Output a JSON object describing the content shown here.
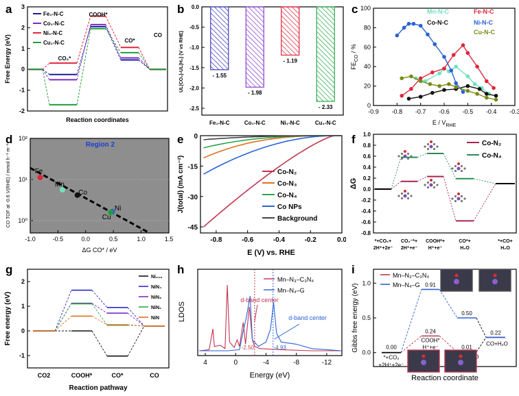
{
  "panel_labels": {
    "a": "a",
    "b": "b",
    "c": "c",
    "d": "d",
    "e": "e",
    "f": "f",
    "g": "g",
    "h": "h",
    "i": "i"
  },
  "chart_data": [
    {
      "id": "a",
      "type": "line",
      "title": "",
      "xlabel": "Reaction coordinates",
      "ylabel": "Free Energy (eV)",
      "ylim": [
        -2,
        3
      ],
      "yticks": [
        "-2",
        "-1",
        "0",
        "1",
        "2",
        "3"
      ],
      "steps": [
        "",
        "CO2*",
        "COOH*",
        "CO*",
        "CO"
      ],
      "step_labels": {
        "co2": "CO₂*",
        "cooh": "COOH*",
        "co": "CO*",
        "co_final": "CO"
      },
      "series": [
        {
          "name": "Fe₁-N-C",
          "color": "#1c1c9a",
          "values": [
            0,
            -0.25,
            2.05,
            0.45,
            0.0
          ]
        },
        {
          "name": "Co₁-N-C",
          "color": "#7a2bc4",
          "values": [
            0,
            -0.5,
            2.15,
            0.55,
            0.0
          ]
        },
        {
          "name": "Ni₁-N-C",
          "color": "#e0263a",
          "values": [
            0,
            0.3,
            2.55,
            1.05,
            0.0
          ]
        },
        {
          "name": "Cu₁-N-C",
          "color": "#1f9e3a",
          "values": [
            0,
            -1.7,
            1.95,
            0.8,
            0.0
          ]
        }
      ]
    },
    {
      "id": "b",
      "type": "bar",
      "title": "",
      "ylabel": "UL(CO₂)-UL(H₂) (V vs RHE)",
      "ylim": [
        -2.5,
        0
      ],
      "yticks": [
        "0.0",
        "-0.5",
        "-1.0",
        "-1.5",
        "-2.0",
        "-2.5"
      ],
      "categories": [
        "Fe₁-N-C",
        "Co₁-N-C",
        "Ni₁-N-C",
        "Cu₁-N-C"
      ],
      "values": [
        -1.55,
        -1.98,
        -1.19,
        -2.33
      ],
      "value_labels": [
        "- 1.55",
        "- 1.98",
        "- 1.19",
        "- 2.33"
      ],
      "colors": [
        "#3d3dbd",
        "#8a3fd1",
        "#e0263a",
        "#2aa84a"
      ]
    },
    {
      "id": "c",
      "type": "scatter",
      "title": "",
      "xlabel": "E / V",
      "xlabel_sub": "RHE",
      "ylabel": "FE",
      "ylabel_sub": "CO",
      "ylabel_unit": " / %",
      "xlim": [
        -0.9,
        -0.3
      ],
      "ylim": [
        0,
        100
      ],
      "xticks": [
        "-0.9",
        "-0.8",
        "-0.7",
        "-0.6",
        "-0.5",
        "-0.4",
        "-0.3"
      ],
      "yticks": [
        "0",
        "20",
        "40",
        "60",
        "80",
        "100"
      ],
      "series": [
        {
          "name": "Mn-N-C",
          "color": "#6fe0c0",
          "x": [
            -0.72,
            -0.68,
            -0.62,
            -0.6,
            -0.58,
            -0.55,
            -0.5,
            -0.47,
            -0.44,
            -0.41
          ],
          "y": [
            28,
            25,
            33,
            38,
            35,
            40,
            30,
            22,
            18,
            12
          ]
        },
        {
          "name": "Fe-N-C",
          "color": "#e0263a",
          "x": [
            -0.78,
            -0.74,
            -0.7,
            -0.65,
            -0.6,
            -0.56,
            -0.52,
            -0.5,
            -0.46,
            -0.42,
            -0.39
          ],
          "y": [
            10,
            17,
            28,
            34,
            38,
            52,
            62,
            54,
            40,
            25,
            18
          ]
        },
        {
          "name": "Co-N-C",
          "color": "#111111",
          "x": [
            -0.75,
            -0.7,
            -0.65,
            -0.6,
            -0.55,
            -0.5,
            -0.45,
            -0.42,
            -0.38
          ],
          "y": [
            7,
            9,
            13,
            16,
            17,
            20,
            17,
            12,
            10
          ]
        },
        {
          "name": "Ni-N-C",
          "color": "#2a62d6",
          "x": [
            -0.8,
            -0.77,
            -0.75,
            -0.73,
            -0.7,
            -0.67,
            -0.64,
            -0.6,
            -0.57,
            -0.55,
            -0.52
          ],
          "y": [
            72,
            80,
            84,
            84,
            82,
            73,
            63,
            50,
            36,
            23,
            14
          ]
        },
        {
          "name": "Cu-N-C",
          "color": "#7a8a12",
          "x": [
            -0.78,
            -0.74,
            -0.7,
            -0.66,
            -0.62,
            -0.58,
            -0.55,
            -0.5,
            -0.46,
            -0.42,
            -0.38
          ],
          "y": [
            28,
            30,
            25,
            22,
            20,
            22,
            19,
            15,
            12,
            8,
            6
          ]
        }
      ]
    },
    {
      "id": "d",
      "type": "scatter",
      "title": "Region 2",
      "xlabel": "ΔG CO* / eV",
      "ylabel": "CO TOF at -0.6 V(RHE) / mmol h⁻¹ m⁻²",
      "xlim": [
        -1.0,
        1.5
      ],
      "ylim_log": [
        -0.3,
        2
      ],
      "xticks": [
        "-1.0",
        "-0.5",
        "0.0",
        "0.5",
        "1.0",
        "1.5"
      ],
      "yticks": [
        "10⁰",
        "10¹",
        "10²"
      ],
      "points": [
        {
          "label": "Fe",
          "x": -0.82,
          "logy": 1.05,
          "color": "#e0263a"
        },
        {
          "label": "Mn",
          "x": -0.42,
          "logy": 0.75,
          "color": "#6fe0c0"
        },
        {
          "label": "Co",
          "x": -0.15,
          "logy": 0.62,
          "color": "#111111"
        },
        {
          "label": "Ni",
          "x": 0.48,
          "logy": 0.22,
          "color": "#2a62d6"
        },
        {
          "label": "Cu",
          "x": 0.45,
          "logy": 0.2,
          "color": "#1f9e3a"
        }
      ]
    },
    {
      "id": "e",
      "type": "line",
      "title": "",
      "xlabel": "E (V) vs. RHE",
      "ylabel": "J(total) (mA cm⁻²)",
      "xlim": [
        -0.9,
        0.0
      ],
      "ylim": [
        -48,
        0
      ],
      "xticks": [
        "-0.8",
        "-0.6",
        "-0.4",
        "-0.2",
        "0.0"
      ],
      "yticks": [
        "0",
        "-15",
        "-30",
        "-45"
      ],
      "series": [
        {
          "name": "Co-N₂",
          "color": "#c0344f",
          "slope": -45
        },
        {
          "name": "Co-N₃",
          "color": "#e07020",
          "slope": -11
        },
        {
          "name": "Co-N₄",
          "color": "#2aa84a",
          "slope": -6
        },
        {
          "name": "Co NPs",
          "color": "#2a62d6",
          "slope": -19
        },
        {
          "name": "Background",
          "color": "#444444",
          "slope": -2
        }
      ]
    },
    {
      "id": "f",
      "type": "line",
      "title": "",
      "ylabel": "ΔG",
      "ylim": [
        -0.8,
        1.0
      ],
      "yticks": [
        "1.0",
        "0.8",
        "0.6",
        "0.4",
        "0.2",
        "0.0",
        "-0.2",
        "-0.4",
        "-0.6",
        "-0.8"
      ],
      "steps": [
        "*+CO₂ + 2H⁺+2e⁻",
        "CO₂⁻* + 2H⁺+e⁻",
        "COOH*+ H⁺+e⁻",
        "CO*+ H₂O",
        "*+CO+ H₂O"
      ],
      "step_lines": [
        [
          "*+CO₂+",
          "2H⁺+2e⁻"
        ],
        [
          "CO₂⁻*+",
          "2H⁺+e⁻"
        ],
        [
          "COOH*+",
          "H⁺+e⁻"
        ],
        [
          "CO*+",
          "H₂O"
        ],
        [
          "*+CO+",
          "H₂O"
        ]
      ],
      "series": [
        {
          "name": "Co-N₂",
          "color": "#a8234a",
          "values": [
            0,
            0.14,
            0.23,
            -0.58,
            0.1
          ]
        },
        {
          "name": "Co-N₄",
          "color": "#2a8a5a",
          "values": [
            0,
            0.58,
            0.65,
            0.19,
            0.1
          ]
        }
      ]
    },
    {
      "id": "g",
      "type": "line",
      "title": "",
      "xlabel": "Reaction pathway",
      "ylabel": "Free energy (eV)",
      "ylim": [
        -1.5,
        2.5
      ],
      "yticks": [
        "-1",
        "0",
        "1",
        "2"
      ],
      "steps": [
        "CO2",
        "COOH*",
        "CO*",
        "CO"
      ],
      "series": [
        {
          "name": "Ni₂₀₉",
          "color": "#111111",
          "values": [
            0,
            0.0,
            -1.02,
            0.2
          ]
        },
        {
          "name": "NiN₄",
          "color": "#2a2ac8",
          "values": [
            0,
            1.65,
            0.95,
            0.2
          ]
        },
        {
          "name": "NiN₃",
          "color": "#7a2bc4",
          "values": [
            0,
            1.12,
            0.72,
            0.2
          ]
        },
        {
          "name": "NiN₂",
          "color": "#2aa84a",
          "values": [
            0,
            1.1,
            0.23,
            0.2
          ]
        },
        {
          "name": "NiN",
          "color": "#e07020",
          "values": [
            0,
            0.6,
            0.25,
            0.2
          ]
        }
      ]
    },
    {
      "id": "h",
      "type": "line",
      "title": "",
      "xlabel": "Energy (eV)",
      "ylabel": "LDOS",
      "xlim": [
        5,
        -14
      ],
      "xticks": [
        "4",
        "0",
        "-4",
        "-8",
        "-12"
      ],
      "series": [
        {
          "name": "Mn–N₃–C₃N₄",
          "color": "#c0344f"
        },
        {
          "name": "Mn–N₄–G",
          "color": "#2a62d6"
        }
      ],
      "annotations": {
        "dband1": "d-band center",
        "dband2": "d-band center",
        "v1": "-2.50",
        "v2": "-4.93"
      },
      "dband_values": [
        -2.5,
        -4.93
      ]
    },
    {
      "id": "i",
      "type": "line",
      "title": "",
      "xlabel": "Reaction coordinate",
      "ylabel": "Gibbs free energy (eV)",
      "ylim": [
        -0.2,
        1.2
      ],
      "yticks": [
        "1.0",
        "0.5",
        "0.0"
      ],
      "series": [
        {
          "name": "Mn–N₃–C₃N₄",
          "color": "#c0344f",
          "values": [
            0.0,
            0.24,
            0.01,
            0.22
          ]
        },
        {
          "name": "Mn–N₄–G",
          "color": "#2a62d6",
          "values": [
            0.0,
            0.91,
            0.5,
            0.22
          ]
        }
      ],
      "value_labels": {
        "s0": "0.00",
        "s1a": "0.91",
        "s1b": "0.24",
        "s2a": "0.50",
        "s2b": "0.01",
        "s3": "0.22"
      },
      "step_labels": {
        "a": "*+CO₂",
        "a2": "+2H⁺+2e⁻",
        "b": "COOH*",
        "b2": "H⁺+e⁻",
        "c": "CO*+H₂O",
        "d": "CO+H₂O"
      }
    }
  ]
}
